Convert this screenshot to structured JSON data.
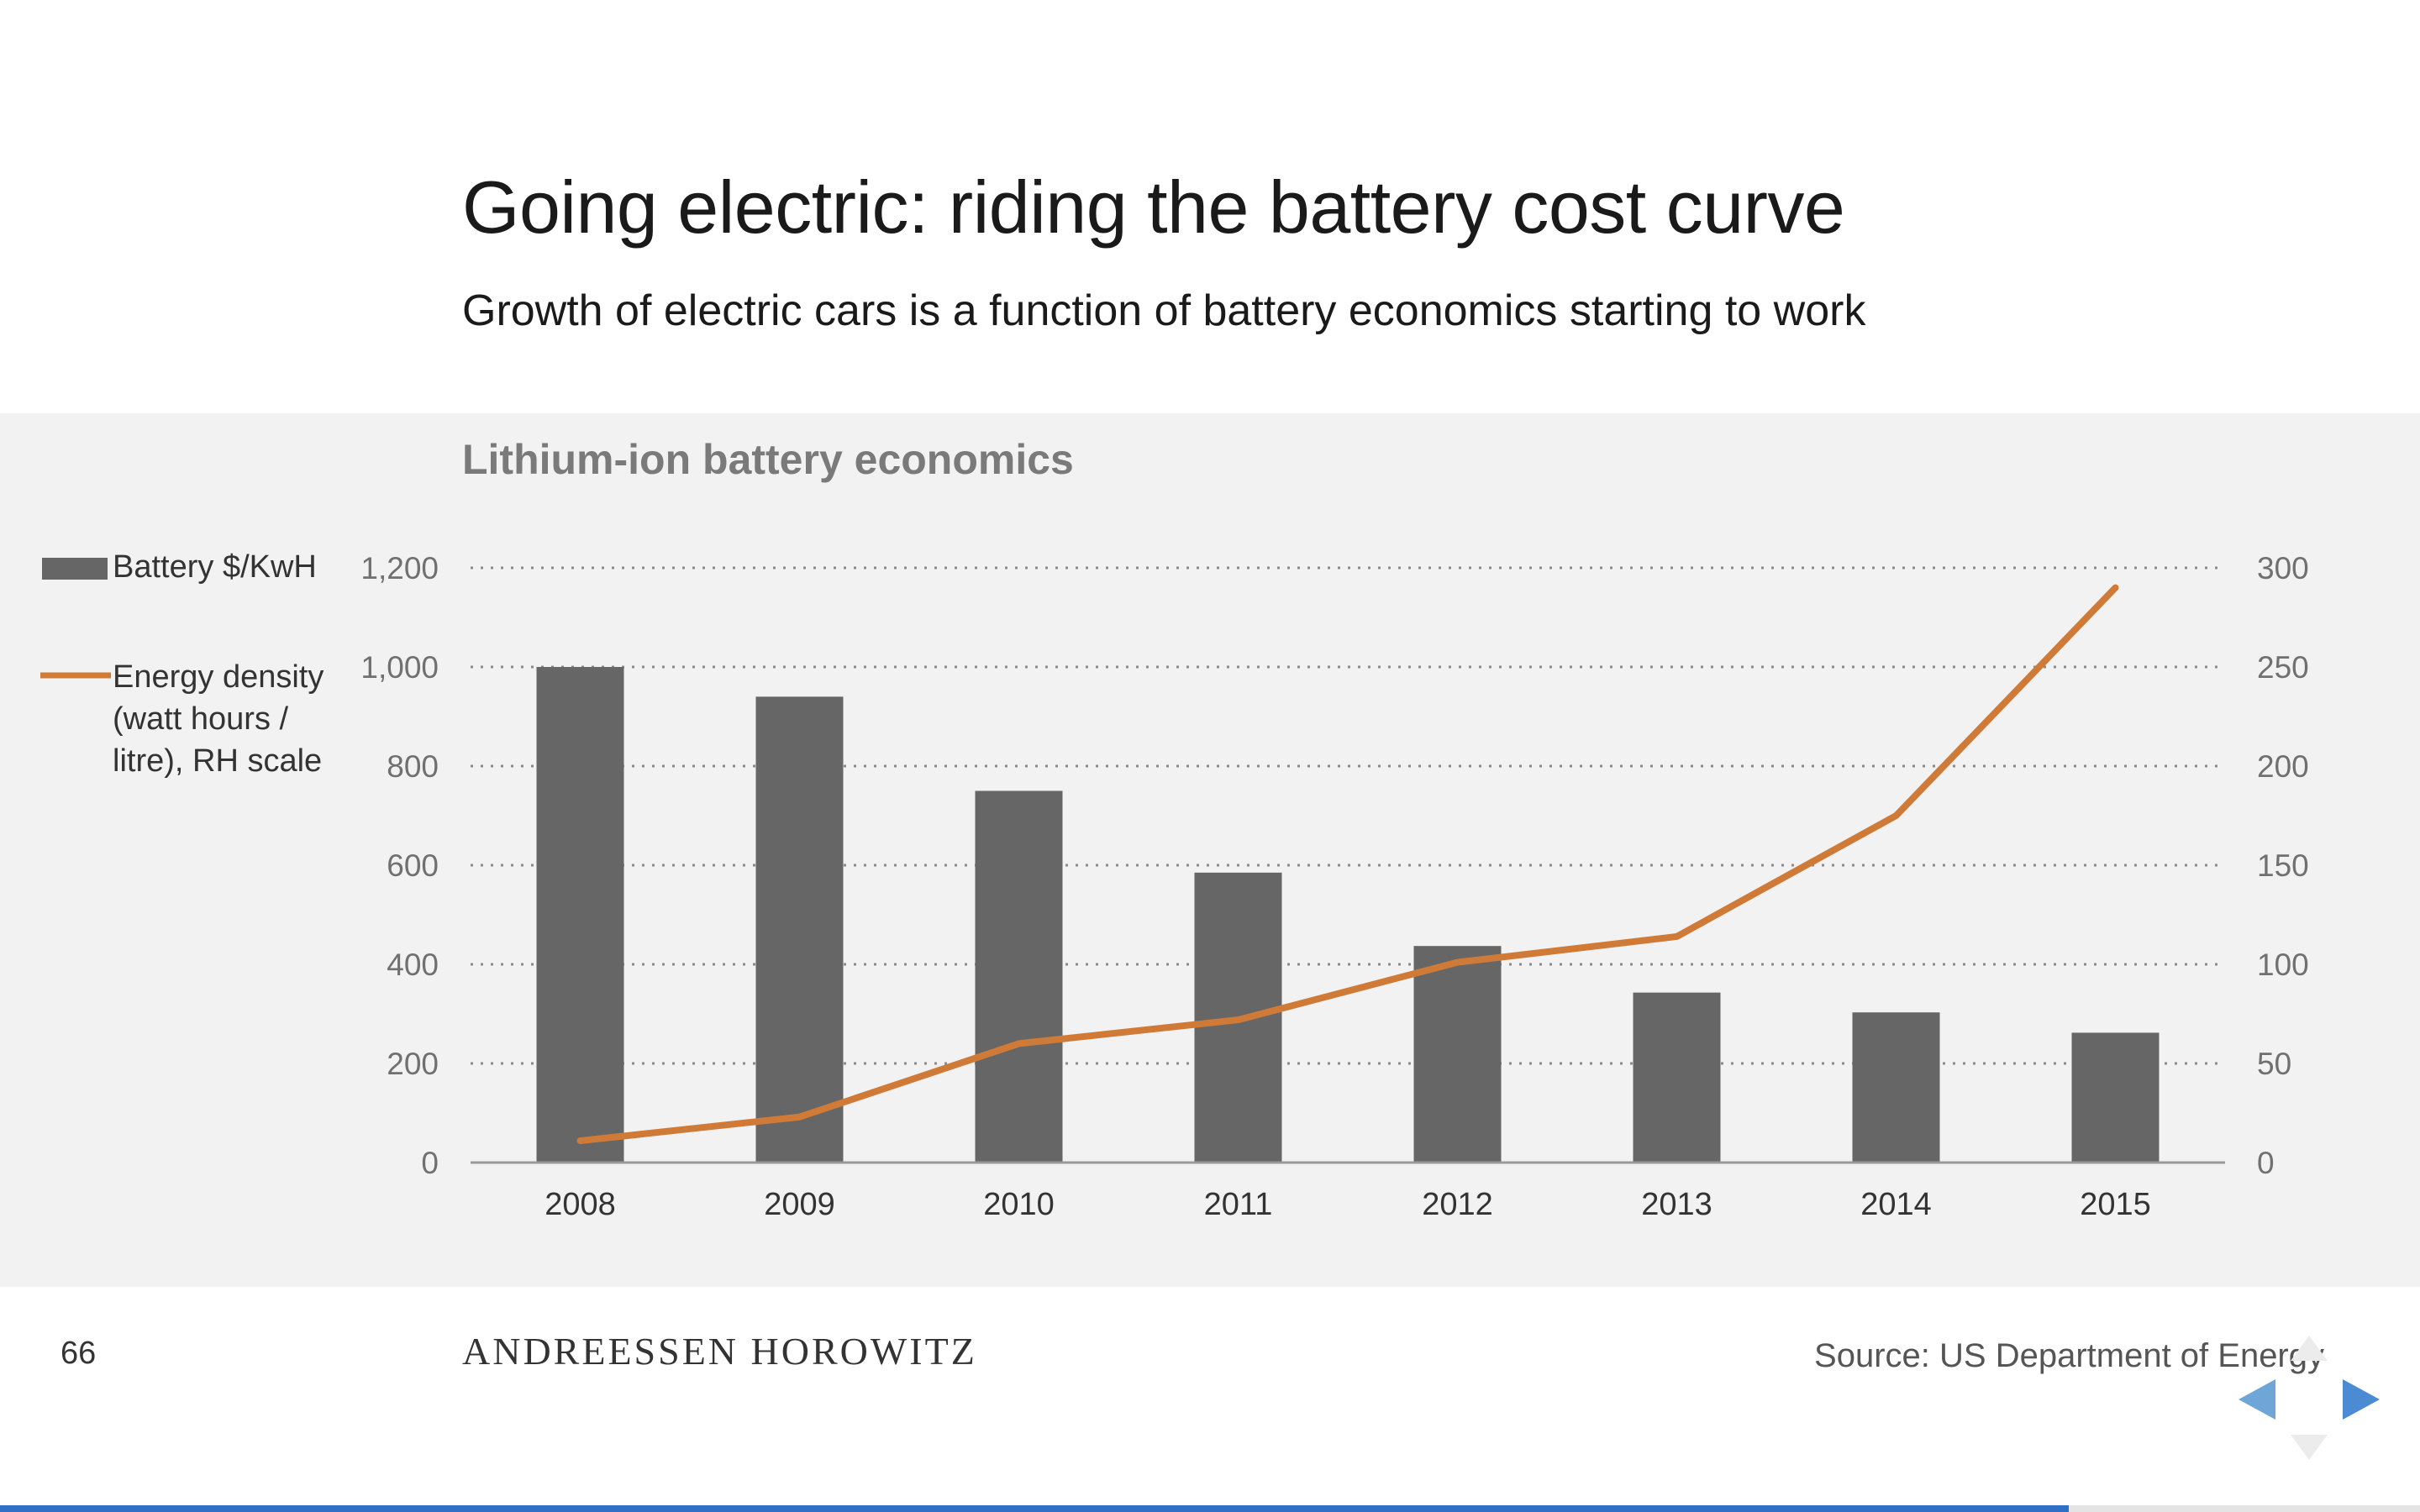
{
  "slide": {
    "title": "Going electric: riding the battery cost curve",
    "subtitle": "Growth of electric cars is a function of battery economics starting to work",
    "page_number": "66",
    "brand": "ANDREESSEN HOROWITZ",
    "source": "Source: US Department of Energy",
    "progress": 0.855
  },
  "colors": {
    "bar": "#666666",
    "line": "#d07a38",
    "panel": "#f2f2f2",
    "nav_prev": "#6fa6d8",
    "nav_next": "#4a8bd4",
    "progress": "#2f6fc6"
  },
  "icons": {
    "prev": "triangle-left-icon",
    "next": "triangle-right-icon"
  },
  "chart_data": {
    "type": "bar",
    "title": "Lithium-ion battery economics",
    "categories": [
      "2008",
      "2009",
      "2010",
      "2011",
      "2012",
      "2013",
      "2014",
      "2015"
    ],
    "series": [
      {
        "name": "Battery $/KwH",
        "type": "bar",
        "axis": "left",
        "values": [
          1000,
          940,
          750,
          585,
          437,
          343,
          303,
          262
        ]
      },
      {
        "name": "Energy density (watt hours / litre), RH scale",
        "legend_lines": [
          "Energy density",
          "(watt hours /",
          "litre), RH scale"
        ],
        "type": "line",
        "axis": "right",
        "values": [
          11,
          23,
          60,
          72,
          101,
          114,
          175,
          290
        ]
      }
    ],
    "y_left": {
      "min": 0,
      "max": 1200,
      "ticks": [
        0,
        200,
        400,
        600,
        800,
        1000,
        1200
      ],
      "tick_labels": [
        "0",
        "200",
        "400",
        "600",
        "800",
        "1,000",
        "1,200"
      ]
    },
    "y_right": {
      "min": 0,
      "max": 300,
      "ticks": [
        0,
        50,
        100,
        150,
        200,
        250,
        300
      ],
      "tick_labels": [
        "0",
        "50",
        "100",
        "150",
        "200",
        "250",
        "300"
      ]
    },
    "grid": "dotted-horizontal",
    "legend_position": "left"
  }
}
